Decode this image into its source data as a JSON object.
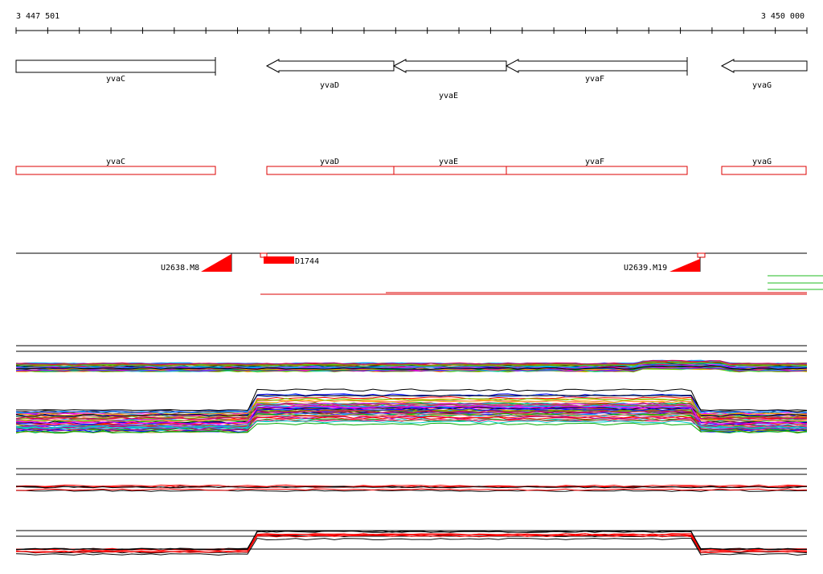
{
  "coords": {
    "start_label": "3 447 501",
    "end_label": "3 450 000"
  },
  "genes": [
    {
      "name": "yvaC",
      "strand": "+"
    },
    {
      "name": "yvaD",
      "strand": "-"
    },
    {
      "name": "yvaE",
      "strand": "-"
    },
    {
      "name": "yvaF",
      "strand": "-"
    },
    {
      "name": "yvaG",
      "strand": "-"
    }
  ],
  "transcripts": [
    {
      "name": "yvaC"
    },
    {
      "name": "yvaD"
    },
    {
      "name": "yvaE"
    },
    {
      "name": "yvaF"
    },
    {
      "name": "yvaG"
    }
  ],
  "features": [
    {
      "label": "U2638.M8"
    },
    {
      "label": "D1744"
    },
    {
      "label": "U2639.M19"
    }
  ],
  "colors": {
    "gene_outline": "#000000",
    "transcript": "#dd0000",
    "feature": "#ff0000",
    "segment_green": "#22bb22"
  }
}
